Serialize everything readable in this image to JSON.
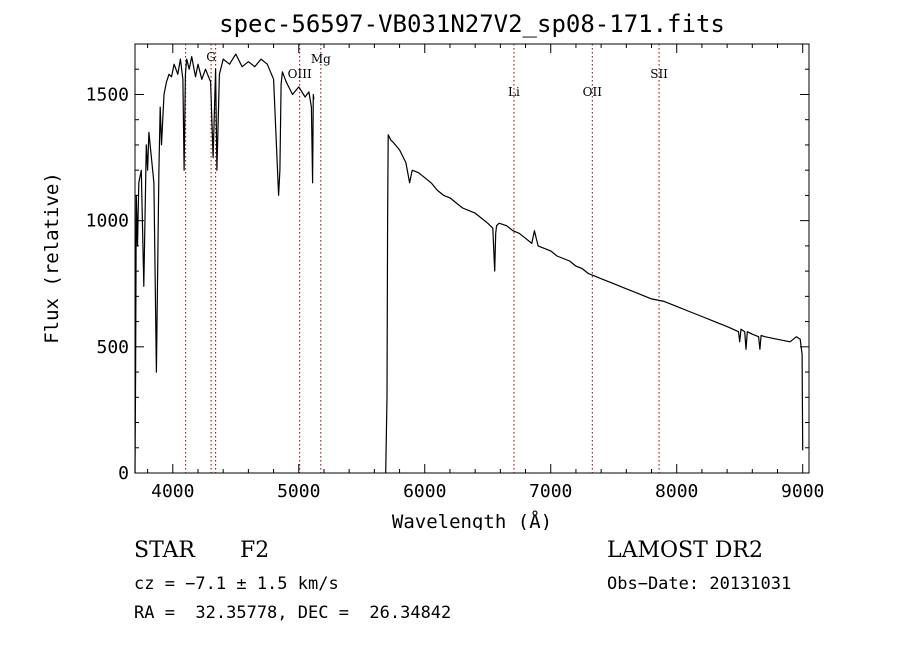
{
  "chart_data": {
    "type": "line",
    "title": "spec-56597-VB031N27V2_sp08-171.fits",
    "xlabel": "Wavelength (Å)",
    "ylabel": "Flux (relative)",
    "xlim": [
      3700,
      9050
    ],
    "ylim": [
      0,
      1700
    ],
    "xticks": [
      4000,
      5000,
      6000,
      7000,
      8000,
      9000
    ],
    "yticks": [
      0,
      500,
      1000,
      1500
    ],
    "xtick_labels": [
      "4000",
      "5000",
      "6000",
      "7000",
      "8000",
      "9000"
    ],
    "ytick_labels": [
      "0",
      "500",
      "1000",
      "1500"
    ],
    "grid": false,
    "line_color": "#000000",
    "marker_color": "#8b0000",
    "series": [
      {
        "x": [
          3700,
          3705,
          3710,
          3720,
          3730,
          3750,
          3770,
          3790,
          3800,
          3810,
          3830,
          3850,
          3870,
          3890,
          3900,
          3910,
          3930,
          3950,
          3970,
          3990,
          4010,
          4040,
          4060,
          4080,
          4090,
          4100,
          4110,
          4130,
          4150,
          4180,
          4200,
          4230,
          4260,
          4300,
          4320,
          4340,
          4350,
          4370,
          4400,
          4450,
          4500,
          4550,
          4600,
          4650,
          4700,
          4750,
          4800,
          4840,
          4850,
          4860,
          4870,
          4900,
          4950,
          5000,
          5050,
          5080,
          5100,
          5110,
          5115,
          5120
        ],
        "y": [
          0,
          400,
          1100,
          900,
          1150,
          1200,
          740,
          1300,
          1200,
          1350,
          1250,
          1150,
          400,
          1200,
          1450,
          1300,
          1500,
          1550,
          1580,
          1570,
          1620,
          1580,
          1640,
          1560,
          1200,
          1580,
          1640,
          1600,
          1650,
          1570,
          1620,
          1560,
          1600,
          1550,
          1250,
          1600,
          1200,
          1580,
          1640,
          1620,
          1660,
          1610,
          1630,
          1610,
          1640,
          1620,
          1560,
          1100,
          1200,
          1540,
          1590,
          1550,
          1500,
          1530,
          1490,
          1510,
          1450,
          1150,
          1500,
          1480
        ]
      },
      {
        "x": [
          5690,
          5700,
          5705,
          5710,
          5730,
          5750,
          5800,
          5850,
          5880,
          5900,
          5950,
          6000,
          6050,
          6100,
          6150,
          6200,
          6250,
          6300,
          6350,
          6400,
          6450,
          6500,
          6540,
          6555,
          6563,
          6570,
          6590,
          6650,
          6700,
          6750,
          6800,
          6850,
          6870,
          6900,
          6950,
          7000,
          7050,
          7100,
          7150,
          7200,
          7250,
          7300,
          7400,
          7500,
          7600,
          7700,
          7800,
          7900,
          8000,
          8100,
          8200,
          8300,
          8400,
          8490,
          8500,
          8510,
          8540,
          8550,
          8560,
          8600,
          8650,
          8660,
          8670,
          8700,
          8800,
          8900,
          8950,
          8980,
          8995,
          9000
        ],
        "y": [
          0,
          300,
          1000,
          1340,
          1320,
          1310,
          1280,
          1230,
          1150,
          1200,
          1190,
          1170,
          1150,
          1120,
          1100,
          1090,
          1070,
          1050,
          1040,
          1030,
          1010,
          990,
          970,
          800,
          950,
          980,
          990,
          980,
          960,
          950,
          930,
          910,
          960,
          900,
          890,
          880,
          860,
          850,
          840,
          820,
          810,
          790,
          770,
          750,
          730,
          710,
          690,
          680,
          660,
          640,
          620,
          600,
          580,
          560,
          520,
          570,
          560,
          490,
          560,
          550,
          540,
          490,
          545,
          540,
          530,
          520,
          540,
          530,
          470,
          90
        ]
      }
    ],
    "markers": [
      {
        "label": "G",
        "x": 4304
      },
      {
        "label": "",
        "x": 4102
      },
      {
        "label": "",
        "x": 4340
      },
      {
        "label": "OIII",
        "x": 5007
      },
      {
        "label": "Mg",
        "x": 5175
      },
      {
        "label": "Li",
        "x": 6708
      },
      {
        "label": "OII",
        "x": 7330
      },
      {
        "label": "SII",
        "x": 7860
      }
    ]
  },
  "info": {
    "object_class": "STAR",
    "subclass": "F2",
    "survey": "LAMOST DR2",
    "cz": "cz = −7.1 ± 1.5 km/s",
    "obs_date": "Obs−Date: 20131031",
    "coords": "RA =  32.35778, DEC =  26.34842"
  }
}
